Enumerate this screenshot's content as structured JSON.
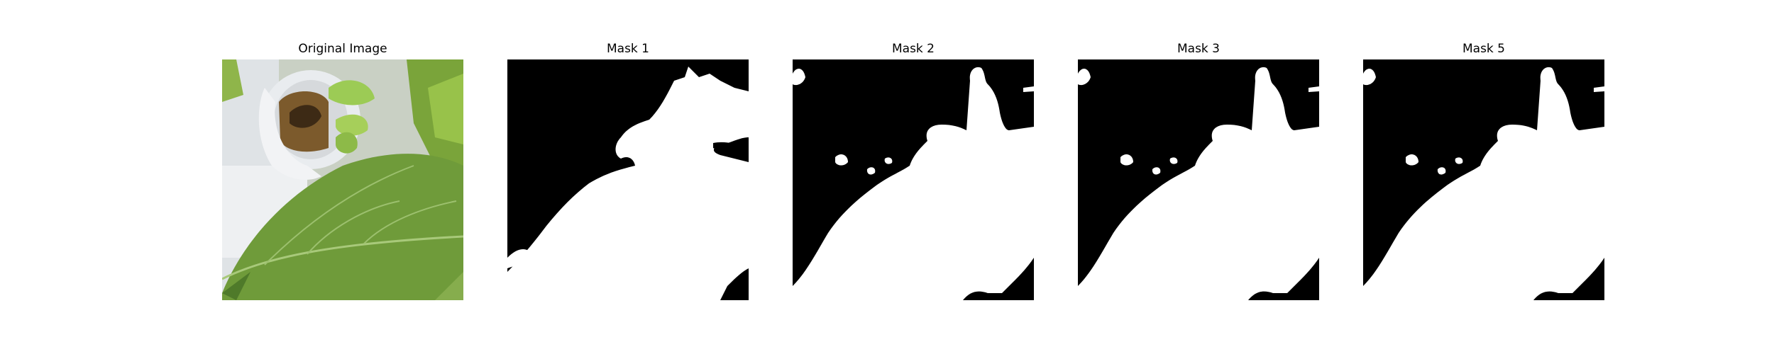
{
  "figure": {
    "panels": [
      {
        "title": "Original Image",
        "kind": "photo"
      },
      {
        "title": "Mask 1",
        "kind": "mask"
      },
      {
        "title": "Mask 2",
        "kind": "mask"
      },
      {
        "title": "Mask 3",
        "kind": "mask"
      },
      {
        "title": "Mask 5",
        "kind": "mask"
      }
    ]
  },
  "colors": {
    "mask_background": "#000000",
    "mask_foreground": "#ffffff",
    "leaf_green": "#6f9b3a",
    "pot_white": "#e8eaec"
  }
}
